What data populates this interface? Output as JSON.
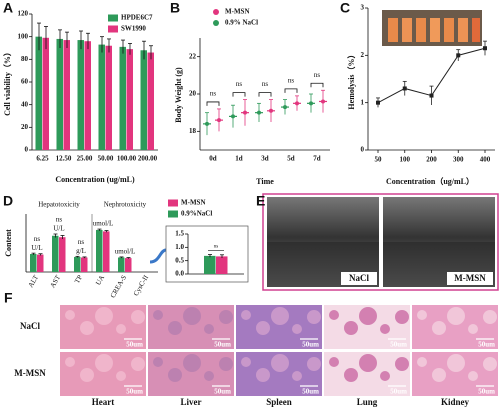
{
  "chart_data": [
    {
      "type": "bar",
      "label": "A",
      "ylabel": "Cell viability（%）",
      "xlabel": "Concentration (ug/mL)",
      "categories": [
        "6.25",
        "12.50",
        "25.00",
        "50.00",
        "100.00",
        "200.00"
      ],
      "series": [
        {
          "name": "HPDE6C7",
          "color": "#2e9a5a",
          "values": [
            100,
            98,
            97,
            93,
            91,
            88
          ],
          "errors": [
            12,
            8,
            8,
            7,
            6,
            8
          ]
        },
        {
          "name": "SW1990",
          "color": "#e2357e",
          "values": [
            99,
            97,
            96,
            92,
            89,
            86
          ],
          "errors": [
            10,
            7,
            7,
            6,
            5,
            6
          ]
        }
      ],
      "ylim": [
        0,
        120
      ],
      "yticks": [
        0,
        20,
        40,
        60,
        80,
        100,
        120
      ]
    },
    {
      "type": "dot",
      "label": "B",
      "ylabel": "Body Weight (g)",
      "xlabel": "Time",
      "categories": [
        "0d",
        "1d",
        "3d",
        "5d",
        "7d"
      ],
      "series": [
        {
          "name": "M-MSN",
          "color": "#e2357e",
          "values": [
            18.6,
            19.0,
            19.1,
            19.5,
            19.6
          ],
          "errors": [
            0.6,
            0.7,
            0.6,
            0.4,
            0.6
          ]
        },
        {
          "name": "0.9% NaCl",
          "color": "#2e9a5a",
          "values": [
            18.4,
            18.8,
            19.0,
            19.3,
            19.5
          ],
          "errors": [
            0.6,
            0.6,
            0.5,
            0.4,
            0.5
          ]
        }
      ],
      "annotations": [
        "ns",
        "ns",
        "ns",
        "ns",
        "ns"
      ],
      "ylim": [
        17,
        23
      ],
      "yticks": [
        18,
        20,
        22
      ]
    },
    {
      "type": "line",
      "label": "C",
      "ylabel": "Hemolysis（%）",
      "xlabel": "Concentration（ug/mL）",
      "categories": [
        "50",
        "100",
        "200",
        "300",
        "400"
      ],
      "values": [
        1.0,
        1.3,
        1.15,
        2.0,
        2.15
      ],
      "errors": [
        0.1,
        0.15,
        0.2,
        0.12,
        0.15
      ],
      "color": "#222222",
      "ylim": [
        0,
        3
      ],
      "yticks": [
        0,
        1,
        2,
        3
      ]
    },
    {
      "type": "bar",
      "label": "D",
      "ylabel": "Content",
      "groups": [
        "Hepatotoxicity",
        "Nephrotoxicity"
      ],
      "categories": [
        "ALT",
        "AST",
        "TP",
        "UA",
        "CREA-S"
      ],
      "units": [
        "U/L",
        "U/L",
        "g/L",
        "umol/L",
        "umol/L"
      ],
      "annotations": [
        "ns",
        "ns",
        "ns",
        null,
        null
      ],
      "series": [
        {
          "name": "M-MSN",
          "color": "#e2357e",
          "values": [
            60,
            120,
            50,
            140,
            48
          ],
          "errors": [
            3,
            6,
            2,
            3,
            2
          ]
        },
        {
          "name": "0.9%NaCl",
          "color": "#2e9a5a",
          "values": [
            62,
            125,
            52,
            145,
            50
          ],
          "errors": [
            3,
            6,
            2,
            3,
            2
          ]
        }
      ],
      "ylim": [
        0,
        200
      ]
    },
    {
      "type": "bar",
      "categories": [
        "CysC-II"
      ],
      "annotations": [
        "ns"
      ],
      "series": [
        {
          "color": "#e2357e",
          "values": [
            0.66
          ],
          "errors": [
            0.06
          ]
        },
        {
          "color": "#2e9a5a",
          "values": [
            0.68
          ],
          "errors": [
            0.05
          ]
        }
      ],
      "ylim": [
        0,
        1.5
      ],
      "yticks": [
        {
          "value": 0,
          "label": "0.0"
        },
        {
          "value": 0.5,
          "label": "0.5"
        },
        {
          "value": 1,
          "label": "1.0"
        },
        {
          "value": 1.5,
          "label": "1.5"
        }
      ]
    }
  ],
  "ultrasound": {
    "label": "E",
    "images": [
      "NaCl",
      "M-MSN"
    ]
  },
  "histology": {
    "label": "F",
    "rows": [
      "NaCl",
      "M-MSN"
    ],
    "columns": [
      "Heart",
      "Liver",
      "Spleen",
      "Lung",
      "Kidney"
    ],
    "scale": "50um"
  }
}
